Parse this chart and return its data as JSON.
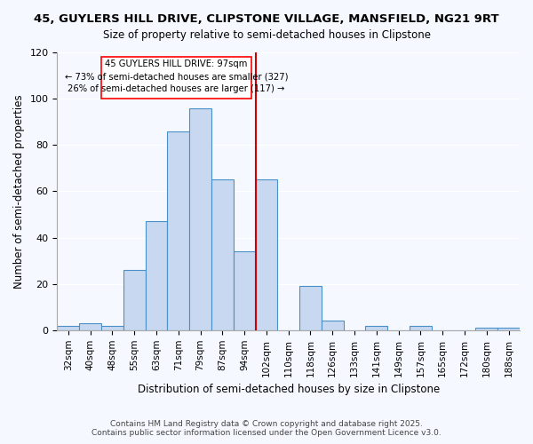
{
  "title": "45, GUYLERS HILL DRIVE, CLIPSTONE VILLAGE, MANSFIELD, NG21 9RT",
  "subtitle": "Size of property relative to semi-detached houses in Clipstone",
  "xlabel": "Distribution of semi-detached houses by size in Clipstone",
  "ylabel": "Number of semi-detached properties",
  "bar_labels": [
    "32sqm",
    "40sqm",
    "48sqm",
    "55sqm",
    "63sqm",
    "71sqm",
    "79sqm",
    "87sqm",
    "94sqm",
    "102sqm",
    "110sqm",
    "118sqm",
    "126sqm",
    "133sqm",
    "141sqm",
    "149sqm",
    "157sqm",
    "165sqm",
    "172sqm",
    "180sqm",
    "188sqm"
  ],
  "bar_values": [
    2,
    3,
    2,
    26,
    47,
    86,
    96,
    65,
    34,
    65,
    0,
    19,
    4,
    0,
    2,
    0,
    2,
    0,
    0,
    1,
    1
  ],
  "bar_color": "#c8d8f0",
  "bar_edge_color": "#4a90c8",
  "property_value": 97,
  "property_label": "45 GUYLERS HILL DRIVE: 97sqm",
  "pct_smaller": 73,
  "n_smaller": 327,
  "pct_larger": 26,
  "n_larger": 117,
  "vline_x_index": 8.5,
  "ylim": [
    0,
    120
  ],
  "yticks": [
    0,
    20,
    40,
    60,
    80,
    100,
    120
  ],
  "footer1": "Contains HM Land Registry data © Crown copyright and database right 2025.",
  "footer2": "Contains public sector information licensed under the Open Government Licence v3.0.",
  "bg_color": "#f5f9ff",
  "annotation_box_color": "#ff0000",
  "vline_color": "#cc0000"
}
